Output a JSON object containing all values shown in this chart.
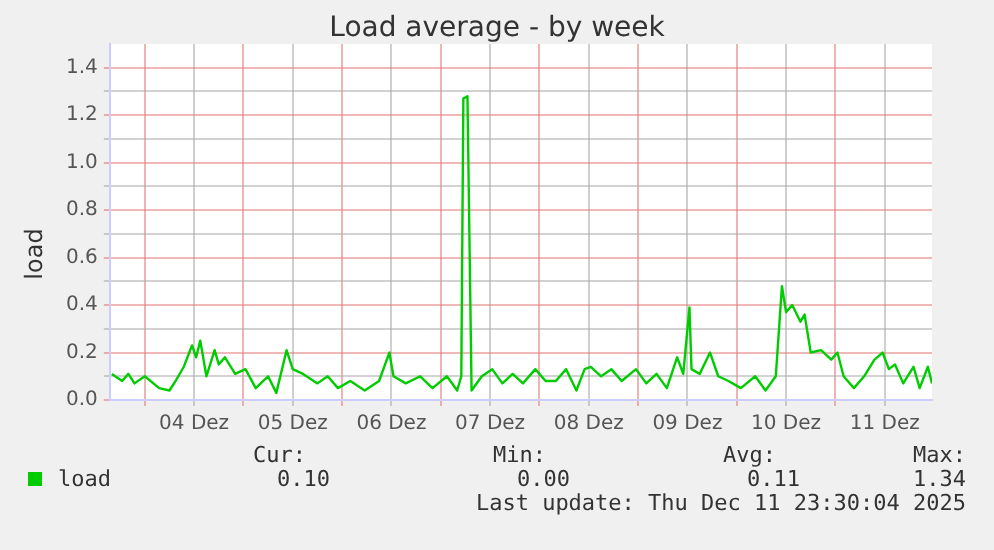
{
  "chart_data": {
    "type": "line",
    "title": "Load average - by week",
    "ylabel": "load",
    "xlim": [
      "2025-12-03T15:30",
      "2025-12-11T23:30"
    ],
    "xticks": [
      {
        "value": "2025-12-04T00:00",
        "label": null
      },
      {
        "value": "2025-12-04T12:00",
        "label": "04 Dez"
      },
      {
        "value": "2025-12-05T00:00",
        "label": null
      },
      {
        "value": "2025-12-05T12:00",
        "label": "05 Dez"
      },
      {
        "value": "2025-12-06T00:00",
        "label": null
      },
      {
        "value": "2025-12-06T12:00",
        "label": "06 Dez"
      },
      {
        "value": "2025-12-07T00:00",
        "label": null
      },
      {
        "value": "2025-12-07T12:00",
        "label": "07 Dez"
      },
      {
        "value": "2025-12-08T00:00",
        "label": null
      },
      {
        "value": "2025-12-08T12:00",
        "label": "08 Dez"
      },
      {
        "value": "2025-12-09T00:00",
        "label": null
      },
      {
        "value": "2025-12-09T12:00",
        "label": "09 Dez"
      },
      {
        "value": "2025-12-10T00:00",
        "label": null
      },
      {
        "value": "2025-12-10T12:00",
        "label": "10 Dez"
      },
      {
        "value": "2025-12-11T00:00",
        "label": null
      },
      {
        "value": "2025-12-11T12:00",
        "label": "11 Dez"
      }
    ],
    "ylim": [
      0,
      1.5
    ],
    "yticks": [
      {
        "value": 0,
        "label": "0.0"
      },
      {
        "value": 0.1,
        "label": null
      },
      {
        "value": 0.2,
        "label": "0.2"
      },
      {
        "value": 0.3,
        "label": null
      },
      {
        "value": 0.4,
        "label": "0.4"
      },
      {
        "value": 0.5,
        "label": null
      },
      {
        "value": 0.6,
        "label": "0.6"
      },
      {
        "value": 0.7,
        "label": null
      },
      {
        "value": 0.8,
        "label": "0.8"
      },
      {
        "value": 0.9,
        "label": null
      },
      {
        "value": 1.0,
        "label": "1.0"
      },
      {
        "value": 1.1,
        "label": null
      },
      {
        "value": 1.2,
        "label": "1.2"
      },
      {
        "value": 1.3,
        "label": null
      },
      {
        "value": 1.4,
        "label": "1.4"
      }
    ],
    "grid": true,
    "legend": "bottom",
    "marker": "none",
    "line_style": "solid",
    "series": [
      {
        "name": "load",
        "color": "#00cc00",
        "x": [
          "2025-12-03T16:00",
          "2025-12-03T18:30",
          "2025-12-03T20:00",
          "2025-12-03T21:30",
          "2025-12-04T00:00",
          "2025-12-04T03:30",
          "2025-12-04T06:00",
          "2025-12-04T07:30",
          "2025-12-04T09:30",
          "2025-12-04T11:30",
          "2025-12-04T12:30",
          "2025-12-04T13:30",
          "2025-12-04T15:00",
          "2025-12-04T17:00",
          "2025-12-04T18:00",
          "2025-12-04T19:30",
          "2025-12-04T22:00",
          "2025-12-05T00:30",
          "2025-12-05T03:00",
          "2025-12-05T06:00",
          "2025-12-05T08:00",
          "2025-12-05T10:30",
          "2025-12-05T12:00",
          "2025-12-05T14:30",
          "2025-12-05T18:00",
          "2025-12-05T20:30",
          "2025-12-05T23:00",
          "2025-12-06T02:00",
          "2025-12-06T05:30",
          "2025-12-06T09:00",
          "2025-12-06T11:30",
          "2025-12-06T12:30",
          "2025-12-06T15:30",
          "2025-12-06T19:00",
          "2025-12-06T22:00",
          "2025-12-07T01:30",
          "2025-12-07T04:00",
          "2025-12-07T05:00",
          "2025-12-07T05:30",
          "2025-12-07T06:30",
          "2025-12-07T07:30",
          "2025-12-07T10:00",
          "2025-12-07T12:30",
          "2025-12-07T15:00",
          "2025-12-07T17:30",
          "2025-12-07T20:00",
          "2025-12-07T23:00",
          "2025-12-08T01:30",
          "2025-12-08T04:00",
          "2025-12-08T06:30",
          "2025-12-08T09:00",
          "2025-12-08T11:00",
          "2025-12-08T12:30",
          "2025-12-08T15:00",
          "2025-12-08T17:30",
          "2025-12-08T20:00",
          "2025-12-08T23:30",
          "2025-12-09T02:00",
          "2025-12-09T04:30",
          "2025-12-09T07:00",
          "2025-12-09T09:30",
          "2025-12-09T11:00",
          "2025-12-09T12:30",
          "2025-12-09T13:00",
          "2025-12-09T15:00",
          "2025-12-09T17:30",
          "2025-12-09T19:30",
          "2025-12-09T22:00",
          "2025-12-10T01:00",
          "2025-12-10T04:30",
          "2025-12-10T07:00",
          "2025-12-10T09:30",
          "2025-12-10T11:00",
          "2025-12-10T12:00",
          "2025-12-10T13:30",
          "2025-12-10T15:30",
          "2025-12-10T16:30",
          "2025-12-10T18:00",
          "2025-12-10T20:30",
          "2025-12-10T23:00",
          "2025-12-11T00:30",
          "2025-12-11T02:00",
          "2025-12-11T04:30",
          "2025-12-11T07:00",
          "2025-12-11T09:30",
          "2025-12-11T11:30",
          "2025-12-11T13:00",
          "2025-12-11T14:30",
          "2025-12-11T16:30",
          "2025-12-11T19:00",
          "2025-12-11T20:30",
          "2025-12-11T22:30",
          "2025-12-11T23:30"
        ],
        "values": [
          0.11,
          0.08,
          0.11,
          0.07,
          0.1,
          0.05,
          0.04,
          0.08,
          0.14,
          0.23,
          0.18,
          0.25,
          0.1,
          0.21,
          0.15,
          0.18,
          0.11,
          0.13,
          0.05,
          0.1,
          0.03,
          0.21,
          0.13,
          0.11,
          0.07,
          0.1,
          0.05,
          0.08,
          0.04,
          0.08,
          0.2,
          0.1,
          0.07,
          0.1,
          0.05,
          0.1,
          0.04,
          0.1,
          1.27,
          1.28,
          0.04,
          0.1,
          0.13,
          0.07,
          0.11,
          0.07,
          0.13,
          0.08,
          0.08,
          0.13,
          0.04,
          0.13,
          0.14,
          0.1,
          0.13,
          0.08,
          0.13,
          0.07,
          0.11,
          0.05,
          0.18,
          0.11,
          0.39,
          0.13,
          0.11,
          0.2,
          0.1,
          0.08,
          0.05,
          0.1,
          0.04,
          0.1,
          0.48,
          0.37,
          0.4,
          0.33,
          0.36,
          0.2,
          0.21,
          0.17,
          0.2,
          0.1,
          0.05,
          0.1,
          0.17,
          0.2,
          0.13,
          0.15,
          0.07,
          0.14,
          0.05,
          0.14,
          0.07
        ]
      }
    ],
    "annotations": [
      "Cur:",
      "Min:",
      "Avg:",
      "Max:",
      "0.10",
      "0.00",
      "0.11",
      "1.34",
      "Last update: Thu Dec 11 23:30:04 2025"
    ]
  }
}
